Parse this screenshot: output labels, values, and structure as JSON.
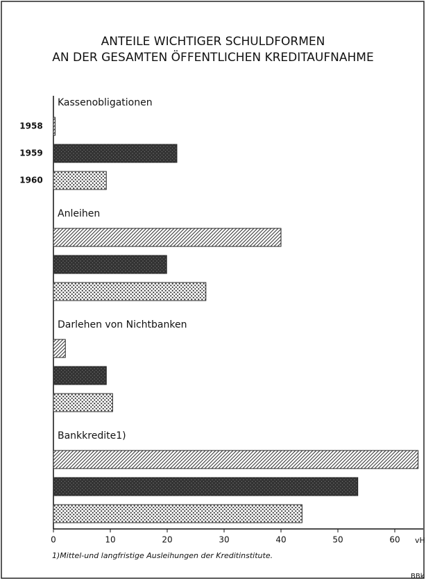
{
  "chart_data": {
    "type": "bar",
    "orientation": "horizontal",
    "title": [
      "ANTEILE WICHTIGER SCHULDFORMEN",
      "AN DER GESAMTEN ÖFFENTLICHEN KREDITAUFNAHME"
    ],
    "categories": [
      "Kassenobligationen",
      "Anleihen",
      "Darlehen von Nichtbanken",
      "Bankkredite1)"
    ],
    "series": [
      {
        "name": "1958",
        "color": "#333333",
        "pattern": "hatch",
        "values": [
          0.3,
          40.0,
          2.1,
          64.1
        ]
      },
      {
        "name": "1959",
        "color": "#333333",
        "pattern": "dense",
        "values": [
          21.7,
          19.9,
          9.3,
          53.5
        ]
      },
      {
        "name": "1960",
        "color": "#333333",
        "pattern": "dots",
        "values": [
          9.3,
          26.8,
          10.4,
          43.7
        ]
      }
    ],
    "xlim": [
      0,
      65
    ],
    "xticks": [
      0,
      10,
      20,
      30,
      40,
      50,
      60
    ],
    "xlabel": "vH",
    "footnote": "1)Mittel-und langfristige Ausleihungen der Kreditinstitute.",
    "source": "BBk"
  }
}
